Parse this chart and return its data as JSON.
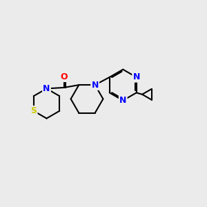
{
  "bg_color": "#ebebeb",
  "bond_color": "#000000",
  "bond_width": 1.5,
  "atom_colors": {
    "N": "#0000ff",
    "O": "#ff0000",
    "S": "#cccc00"
  },
  "font_size": 9,
  "xlim": [
    0,
    10
  ],
  "ylim": [
    0,
    10
  ]
}
